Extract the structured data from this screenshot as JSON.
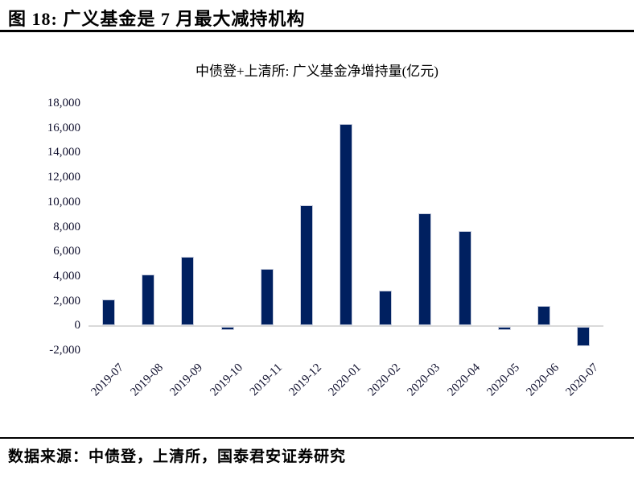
{
  "header": {
    "title": "图 18:  广义基金是 7 月最大减持机构"
  },
  "chart_data": {
    "type": "bar",
    "title": "中债登+上清所: 广义基金净增持量(亿元)",
    "categories": [
      "2019-07",
      "2019-08",
      "2019-09",
      "2019-10",
      "2019-11",
      "2019-12",
      "2020-01",
      "2020-02",
      "2020-03",
      "2020-04",
      "2020-05",
      "2020-06",
      "2020-07"
    ],
    "values": [
      2100,
      4100,
      5550,
      -350,
      4600,
      9700,
      16300,
      2800,
      9100,
      7650,
      -400,
      1600,
      -1700
    ],
    "ylim": [
      -2000,
      18000
    ],
    "yticks": [
      18000,
      16000,
      14000,
      12000,
      10000,
      8000,
      6000,
      4000,
      2000,
      0,
      -2000
    ],
    "xlabel": "",
    "ylabel": "",
    "grid": false,
    "legend": "none",
    "bar_color": "#002060",
    "bar_border_color": "#c9cede",
    "axis_line_color": "#d9d9d9",
    "tick_label_color": "#10102e"
  },
  "footer": {
    "source": "数据来源：中债登，上清所，国泰君安证券研究"
  }
}
